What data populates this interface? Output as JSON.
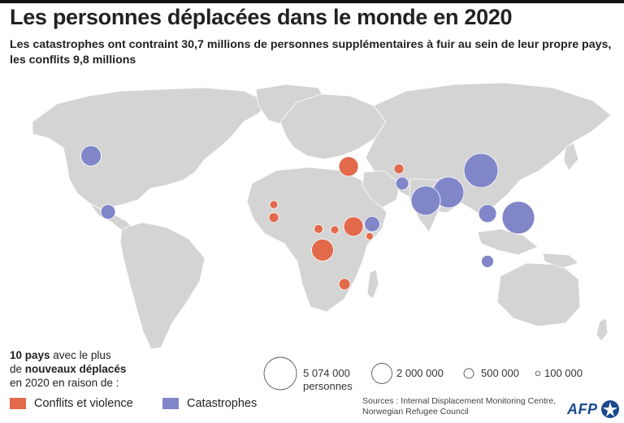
{
  "title": "Les personnes déplacées dans le monde en 2020",
  "subtitle": "Les catastrophes ont contraint 30,7 millions de personnes supplémentaires à fuir au sein de leur propre pays, les conflits 9,8 millions",
  "legend": {
    "intro_count": "10 pays",
    "intro_mid": " avec le plus",
    "intro_de": "de ",
    "intro_bold": "nouveaux déplacés",
    "intro_end": "en 2020 en raison de :",
    "categories": [
      {
        "label": "Conflits et violence",
        "color": "#e2694a"
      },
      {
        "label": "Catastrophes",
        "color": "#8186c9"
      }
    ],
    "sizes": [
      {
        "label": "5 074 000",
        "sublabel": "personnes",
        "value": 5074000
      },
      {
        "label": "2 000 000",
        "value": 2000000
      },
      {
        "label": "500 000",
        "value": 500000
      },
      {
        "label": "100 000",
        "value": 100000
      }
    ]
  },
  "sources": {
    "line1": "Sources : Internal Displacement Monitoring Centre,",
    "line2": "Norwegian Refugee Council"
  },
  "logo": "AFP",
  "colors": {
    "land": "#d4d4d4",
    "border": "#ffffff",
    "conflict": "#e2694a",
    "disaster": "#8186c9"
  }
}
